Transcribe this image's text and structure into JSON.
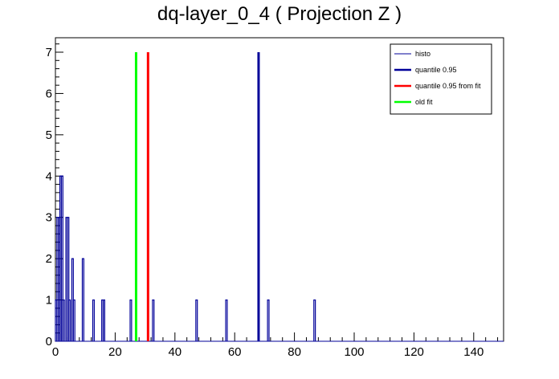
{
  "chart_data": {
    "type": "line",
    "title": "dq-layer_0_4 ( Projection Z )",
    "xlabel": "",
    "ylabel": "",
    "xlim": [
      0,
      150
    ],
    "ylim": [
      0,
      7.35
    ],
    "x_ticks": [
      0,
      20,
      40,
      60,
      80,
      100,
      120,
      140
    ],
    "y_ticks": [
      0,
      1,
      2,
      3,
      4,
      5,
      6,
      7
    ],
    "grid": false,
    "legend_position": "top-right",
    "series": [
      {
        "name": "histo",
        "color": "#000099",
        "style": "histogram",
        "bins": [
          {
            "x": 0.0,
            "w": 0.5,
            "y": 1
          },
          {
            "x": 0.5,
            "w": 0.5,
            "y": 3
          },
          {
            "x": 1.0,
            "w": 0.5,
            "y": 3
          },
          {
            "x": 1.5,
            "w": 0.5,
            "y": 4
          },
          {
            "x": 2.0,
            "w": 0.5,
            "y": 4
          },
          {
            "x": 2.5,
            "w": 0.5,
            "y": 1
          },
          {
            "x": 3.5,
            "w": 0.5,
            "y": 3
          },
          {
            "x": 4.0,
            "w": 0.5,
            "y": 3
          },
          {
            "x": 4.5,
            "w": 0.5,
            "y": 1
          },
          {
            "x": 5.5,
            "w": 0.5,
            "y": 2
          },
          {
            "x": 6.0,
            "w": 0.5,
            "y": 1
          },
          {
            "x": 9.0,
            "w": 0.5,
            "y": 2
          },
          {
            "x": 12.5,
            "w": 0.5,
            "y": 1
          },
          {
            "x": 15.5,
            "w": 0.5,
            "y": 1
          },
          {
            "x": 16.0,
            "w": 0.5,
            "y": 1
          },
          {
            "x": 25.0,
            "w": 0.5,
            "y": 1
          },
          {
            "x": 32.5,
            "w": 0.5,
            "y": 1
          },
          {
            "x": 47.0,
            "w": 0.5,
            "y": 1
          },
          {
            "x": 57.0,
            "w": 0.5,
            "y": 1
          },
          {
            "x": 71.0,
            "w": 0.5,
            "y": 1
          },
          {
            "x": 86.5,
            "w": 0.5,
            "y": 1
          }
        ]
      },
      {
        "name": "quantile 0.95",
        "color": "#000099",
        "style": "vline",
        "x": 68.0,
        "y": 7
      },
      {
        "name": "quantile 0.95 from fit",
        "color": "#ff0000",
        "style": "vline",
        "x": 31.0,
        "y": 7
      },
      {
        "name": "old fit",
        "color": "#00ff00",
        "style": "vline",
        "x": 27.0,
        "y": 7
      }
    ]
  }
}
